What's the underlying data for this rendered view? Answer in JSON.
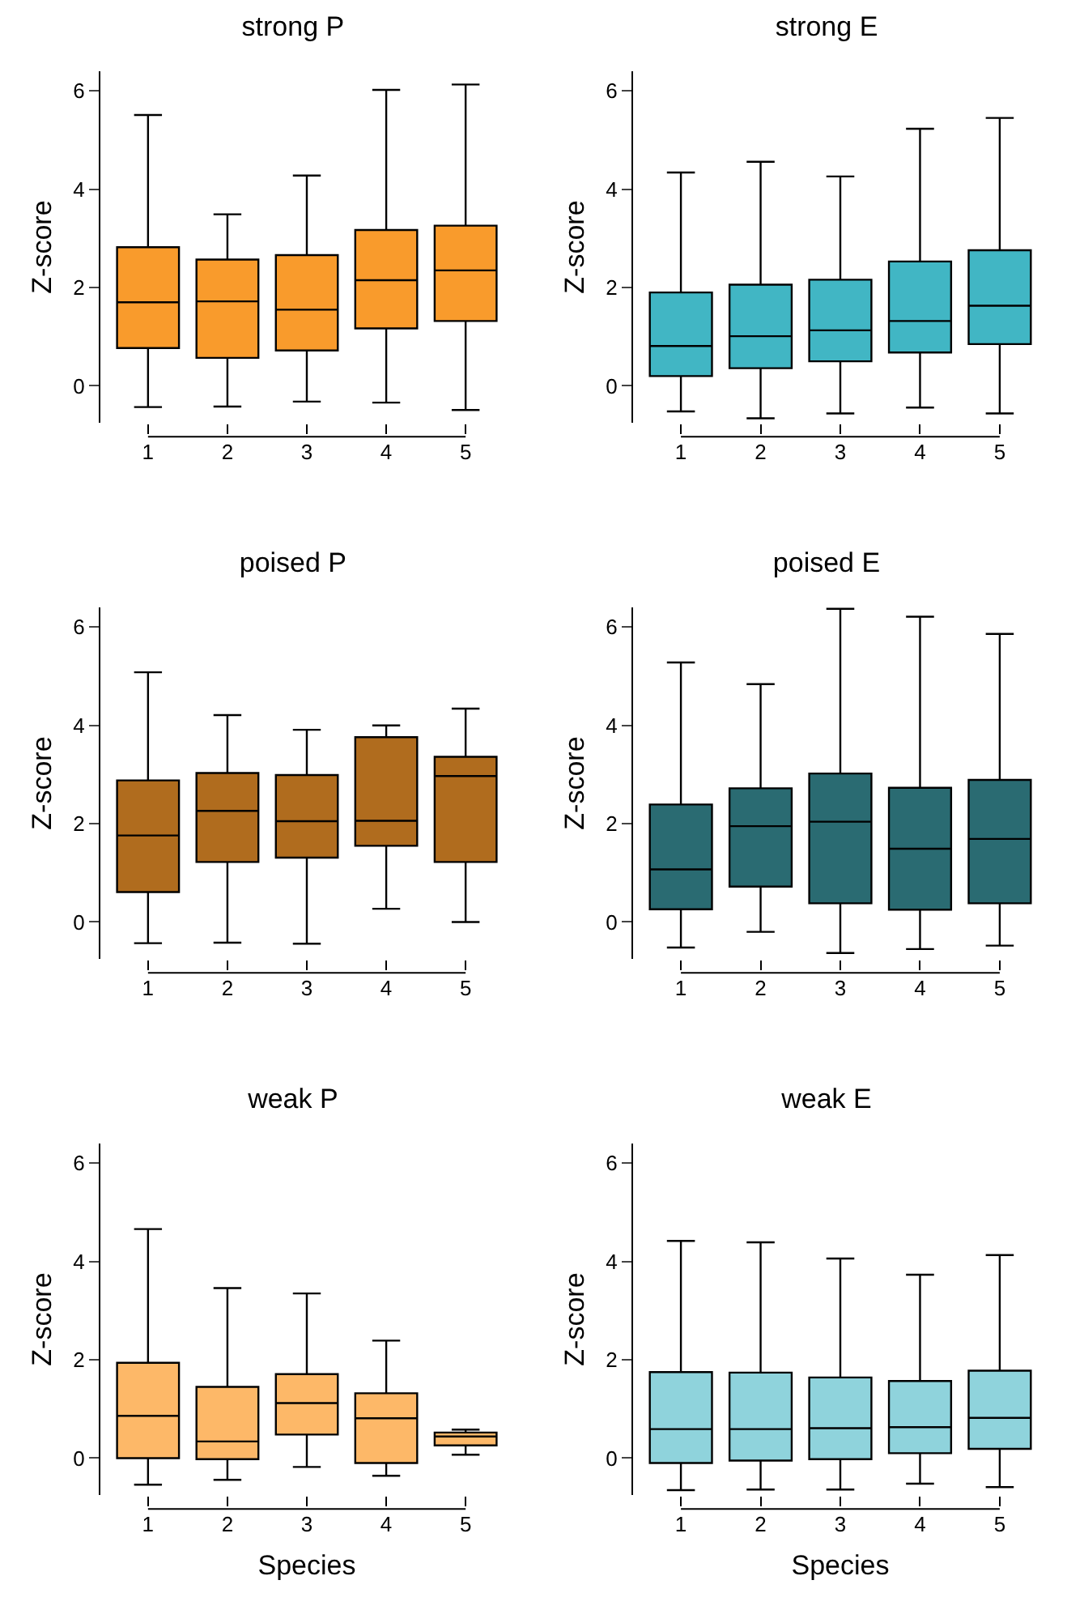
{
  "chart_data": [
    {
      "type": "box",
      "title": "strong P",
      "ylabel": "Z-score",
      "categories": [
        "1",
        "2",
        "3",
        "4",
        "5"
      ],
      "color": "#f99b2c",
      "ylim": [
        -0.75,
        6.4
      ],
      "yticks": [
        0,
        2,
        4,
        6
      ],
      "grid": false,
      "boxes": [
        {
          "low": -0.43,
          "q1": 0.77,
          "median": 1.7,
          "q3": 2.82,
          "high": 5.51
        },
        {
          "low": -0.42,
          "q1": 0.57,
          "median": 1.72,
          "q3": 2.57,
          "high": 3.49
        },
        {
          "low": -0.32,
          "q1": 0.72,
          "median": 1.55,
          "q3": 2.66,
          "high": 4.28
        },
        {
          "low": -0.34,
          "q1": 1.17,
          "median": 2.15,
          "q3": 3.17,
          "high": 6.02
        },
        {
          "low": -0.49,
          "q1": 1.32,
          "median": 2.35,
          "q3": 3.26,
          "high": 6.13
        }
      ]
    },
    {
      "type": "box",
      "title": "strong E",
      "ylabel": "Z-score",
      "categories": [
        "1",
        "2",
        "3",
        "4",
        "5"
      ],
      "color": "#41b6c4",
      "ylim": [
        -0.75,
        6.4
      ],
      "yticks": [
        0,
        2,
        4,
        6
      ],
      "grid": false,
      "boxes": [
        {
          "low": -0.52,
          "q1": 0.2,
          "median": 0.81,
          "q3": 1.9,
          "high": 4.34
        },
        {
          "low": -0.66,
          "q1": 0.36,
          "median": 1.01,
          "q3": 2.06,
          "high": 4.56
        },
        {
          "low": -0.56,
          "q1": 0.5,
          "median": 1.13,
          "q3": 2.16,
          "high": 4.26
        },
        {
          "low": -0.44,
          "q1": 0.68,
          "median": 1.32,
          "q3": 2.53,
          "high": 5.23
        },
        {
          "low": -0.56,
          "q1": 0.85,
          "median": 1.63,
          "q3": 2.76,
          "high": 5.45
        }
      ]
    },
    {
      "type": "box",
      "title": "poised P",
      "ylabel": "Z-score",
      "categories": [
        "1",
        "2",
        "3",
        "4",
        "5"
      ],
      "color": "#b06c1e",
      "ylim": [
        -0.75,
        6.4
      ],
      "yticks": [
        0,
        2,
        4,
        6
      ],
      "grid": false,
      "boxes": [
        {
          "low": -0.43,
          "q1": 0.61,
          "median": 1.76,
          "q3": 2.88,
          "high": 5.08
        },
        {
          "low": -0.42,
          "q1": 1.22,
          "median": 2.26,
          "q3": 3.03,
          "high": 4.21
        },
        {
          "low": -0.44,
          "q1": 1.31,
          "median": 2.05,
          "q3": 2.99,
          "high": 3.91
        },
        {
          "low": 0.27,
          "q1": 1.55,
          "median": 2.06,
          "q3": 3.76,
          "high": 4.0
        },
        {
          "low": 0.0,
          "q1": 1.22,
          "median": 2.97,
          "q3": 3.36,
          "high": 4.34
        }
      ]
    },
    {
      "type": "box",
      "title": "poised E",
      "ylabel": "Z-score",
      "categories": [
        "1",
        "2",
        "3",
        "4",
        "5"
      ],
      "color": "#2a6b72",
      "ylim": [
        -0.75,
        6.4
      ],
      "yticks": [
        0,
        2,
        4,
        6
      ],
      "grid": false,
      "boxes": [
        {
          "low": -0.52,
          "q1": 0.26,
          "median": 1.07,
          "q3": 2.39,
          "high": 5.28
        },
        {
          "low": -0.2,
          "q1": 0.72,
          "median": 1.95,
          "q3": 2.72,
          "high": 4.84
        },
        {
          "low": -0.63,
          "q1": 0.38,
          "median": 2.04,
          "q3": 3.02,
          "high": 6.37
        },
        {
          "low": -0.55,
          "q1": 0.25,
          "median": 1.49,
          "q3": 2.73,
          "high": 6.21
        },
        {
          "low": -0.48,
          "q1": 0.38,
          "median": 1.69,
          "q3": 2.89,
          "high": 5.86
        }
      ]
    },
    {
      "type": "box",
      "title": "weak P",
      "xlabel": "Species",
      "ylabel": "Z-score",
      "categories": [
        "1",
        "2",
        "3",
        "4",
        "5"
      ],
      "color": "#fdb868",
      "ylim": [
        -0.75,
        6.4
      ],
      "yticks": [
        0,
        2,
        4,
        6
      ],
      "grid": false,
      "boxes": [
        {
          "low": -0.54,
          "q1": 0.0,
          "median": 0.86,
          "q3": 1.94,
          "high": 4.66
        },
        {
          "low": -0.44,
          "q1": -0.02,
          "median": 0.34,
          "q3": 1.45,
          "high": 3.46
        },
        {
          "low": -0.18,
          "q1": 0.48,
          "median": 1.12,
          "q3": 1.71,
          "high": 3.35
        },
        {
          "low": -0.36,
          "q1": -0.1,
          "median": 0.81,
          "q3": 1.32,
          "high": 2.39
        },
        {
          "low": 0.07,
          "q1": 0.26,
          "median": 0.44,
          "q3": 0.52,
          "high": 0.58
        }
      ]
    },
    {
      "type": "box",
      "title": "weak E",
      "xlabel": "Species",
      "ylabel": "Z-score",
      "categories": [
        "1",
        "2",
        "3",
        "4",
        "5"
      ],
      "color": "#8fd3dc",
      "ylim": [
        -0.75,
        6.4
      ],
      "yticks": [
        0,
        2,
        4,
        6
      ],
      "grid": false,
      "boxes": [
        {
          "low": -0.65,
          "q1": -0.1,
          "median": 0.59,
          "q3": 1.75,
          "high": 4.42
        },
        {
          "low": -0.64,
          "q1": -0.05,
          "median": 0.59,
          "q3": 1.74,
          "high": 4.39
        },
        {
          "low": -0.64,
          "q1": -0.02,
          "median": 0.61,
          "q3": 1.64,
          "high": 4.06
        },
        {
          "low": -0.52,
          "q1": 0.1,
          "median": 0.63,
          "q3": 1.57,
          "high": 3.73
        },
        {
          "low": -0.59,
          "q1": 0.19,
          "median": 0.82,
          "q3": 1.78,
          "high": 4.13
        }
      ]
    }
  ]
}
